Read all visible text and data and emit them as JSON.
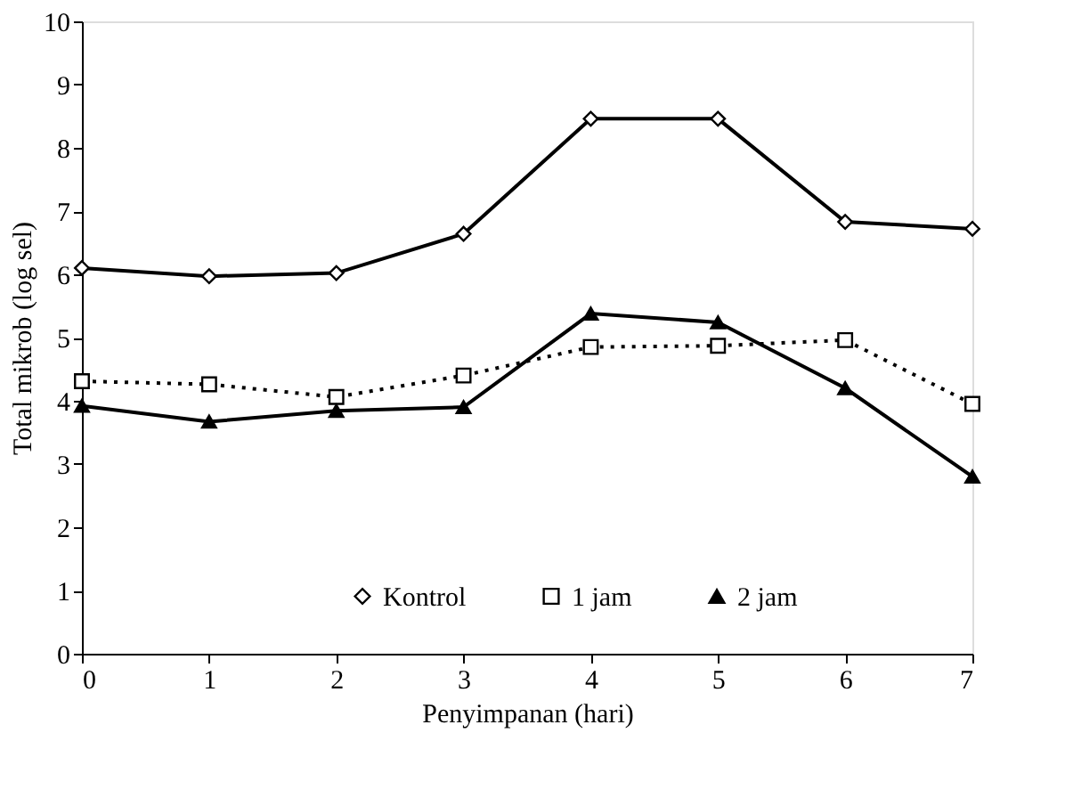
{
  "chart_data": {
    "type": "line",
    "xlabel": "Penyimpanan (hari)",
    "ylabel": "Total mikrob (log sel)",
    "x": [
      0,
      1,
      2,
      3,
      4,
      5,
      6,
      7
    ],
    "series": [
      {
        "name": "Kontrol",
        "color": "#000000",
        "marker": "diamond",
        "line_style": "solid",
        "values": [
          6.1,
          5.97,
          6.02,
          6.64,
          8.46,
          8.46,
          6.83,
          6.72
        ]
      },
      {
        "name": "1 jam",
        "color": "#000000",
        "marker": "square",
        "line_style": "dotted",
        "values": [
          4.31,
          4.26,
          4.06,
          4.4,
          4.85,
          4.87,
          4.96,
          3.95
        ]
      },
      {
        "name": "2 jam",
        "color": "#000000",
        "marker": "triangle",
        "line_style": "solid",
        "values": [
          3.92,
          3.67,
          3.84,
          3.9,
          5.38,
          5.24,
          4.2,
          2.8
        ]
      }
    ],
    "xlim": [
      0,
      7
    ],
    "xticks": [
      0,
      1,
      2,
      3,
      4,
      5,
      6,
      7
    ],
    "ylim": [
      0,
      10
    ],
    "yticks": [
      0,
      1,
      2,
      3,
      4,
      5,
      6,
      7,
      8,
      9,
      10
    ],
    "grid": false,
    "legend": "bottom"
  }
}
